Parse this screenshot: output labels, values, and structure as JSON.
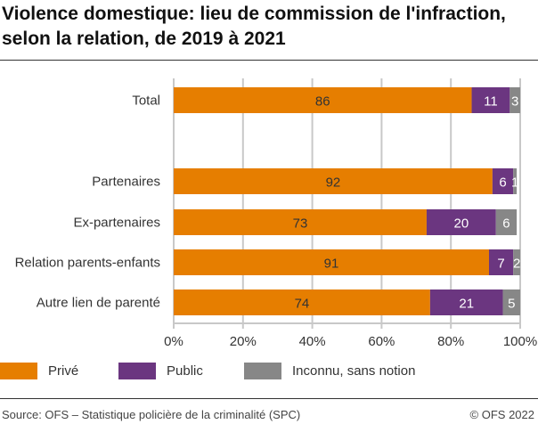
{
  "chart_data": {
    "type": "bar",
    "orientation": "horizontal",
    "stacked": true,
    "title": "Violence domestique: lieu de commission de l'infraction, selon la relation, de 2019 à 2021",
    "categories": [
      "Total",
      "",
      "Partenaires",
      "Ex-partenaires",
      "Relation parents-enfants",
      "Autre lien de parenté"
    ],
    "series": [
      {
        "name": "Privé",
        "color": "#e67e00",
        "values": [
          86,
          null,
          92,
          73,
          91,
          74
        ]
      },
      {
        "name": "Public",
        "color": "#6b3680",
        "values": [
          11,
          null,
          6,
          20,
          7,
          21
        ]
      },
      {
        "name": "Inconnu, sans notion",
        "color": "#878787",
        "values": [
          3,
          null,
          1,
          6,
          2,
          5
        ]
      }
    ],
    "xlim": [
      0,
      100
    ],
    "xticks": [
      "0%",
      "20%",
      "40%",
      "60%",
      "80%",
      "100%"
    ],
    "grid": true,
    "legend": "bottom"
  },
  "footer": {
    "source": "Source: OFS – Statistique policière de la criminalité (SPC)",
    "copyright": "© OFS 2022"
  }
}
